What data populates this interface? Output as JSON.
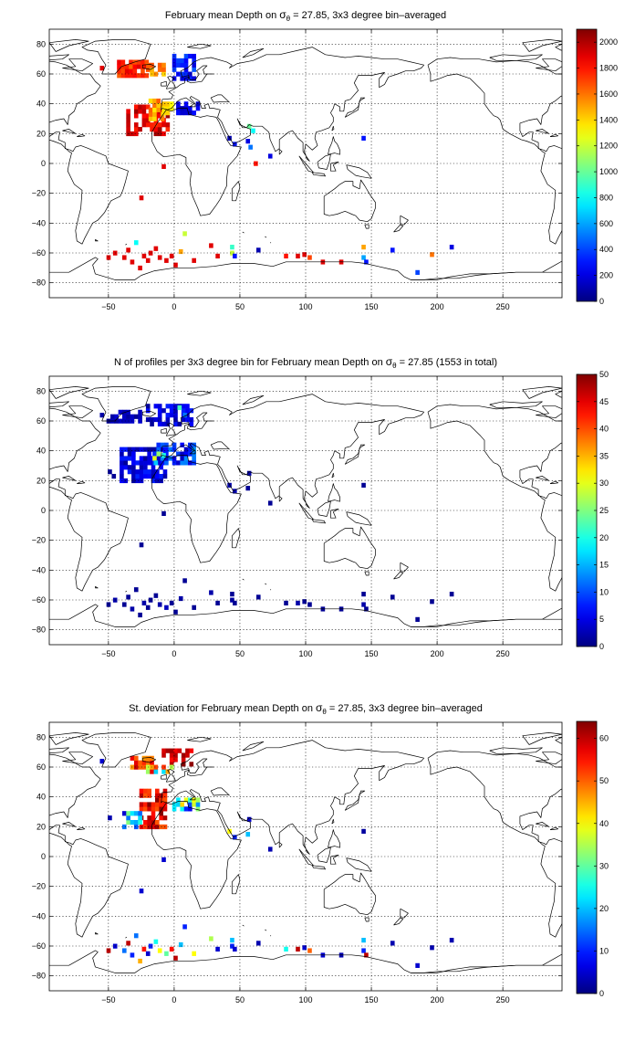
{
  "chart_data": [
    {
      "type": "heatmap",
      "title_prefix": "February mean Depth on ",
      "title_symbol": "σ",
      "title_subscript": "θ",
      "title_suffix": " = 27.85, 3x3 degree bin–averaged",
      "xlabel": "",
      "ylabel": "",
      "xlim": [
        -95,
        295
      ],
      "ylim": [
        -90,
        90
      ],
      "xticks": [
        -50,
        0,
        50,
        100,
        150,
        200,
        250
      ],
      "yticks": [
        -80,
        -60,
        -40,
        -20,
        0,
        20,
        40,
        60,
        80
      ],
      "grid": true,
      "colorbar": {
        "min": 0,
        "max": 2100,
        "ticks": [
          0,
          200,
          400,
          600,
          800,
          1000,
          1200,
          1400,
          1600,
          1800,
          2000
        ],
        "colormap": "jet"
      },
      "bin_size_deg": 3,
      "clusters": [
        {
          "lon": [
            0,
            15
          ],
          "lat": [
            57,
            72
          ],
          "v": [
            150,
            450
          ]
        },
        {
          "lon": [
            -42,
            -20
          ],
          "lat": [
            59,
            68
          ],
          "v": [
            1600,
            1900
          ]
        },
        {
          "lon": [
            -20,
            -8
          ],
          "lat": [
            60,
            67
          ],
          "v": [
            1300,
            1700
          ]
        },
        {
          "lon": [
            -35,
            -5
          ],
          "lat": [
            20,
            38
          ],
          "v": [
            1750,
            2050
          ]
        },
        {
          "lon": [
            -18,
            -8
          ],
          "lat": [
            30,
            44
          ],
          "v": [
            1350,
            1650
          ]
        },
        {
          "lon": [
            -8,
            0
          ],
          "lat": [
            34,
            42
          ],
          "v": [
            1300,
            1500
          ]
        },
        {
          "lon": [
            3,
            18
          ],
          "lat": [
            34,
            40
          ],
          "v": [
            100,
            300
          ]
        }
      ],
      "cells": [
        [
          -55,
          64,
          1900
        ],
        [
          -25,
          -23,
          1900
        ],
        [
          -8,
          -2,
          1900
        ],
        [
          42,
          17,
          100
        ],
        [
          46,
          13,
          300
        ],
        [
          57,
          25,
          1000
        ],
        [
          60,
          22,
          800
        ],
        [
          56,
          15,
          200
        ],
        [
          58,
          11,
          500
        ],
        [
          73,
          5,
          200
        ],
        [
          62,
          0,
          1800
        ],
        [
          144,
          17,
          300
        ],
        [
          -29,
          -53,
          800
        ],
        [
          -23,
          -62,
          1900
        ],
        [
          -18,
          -60,
          1900
        ],
        [
          -14,
          -57,
          1900
        ],
        [
          -11,
          -63,
          1900
        ],
        [
          -6,
          -65,
          1900
        ],
        [
          -2,
          -62,
          1900
        ],
        [
          1,
          -68,
          1900
        ],
        [
          5,
          -59,
          1500
        ],
        [
          8,
          -47,
          1200
        ],
        [
          15,
          -65,
          1900
        ],
        [
          28,
          -55,
          1900
        ],
        [
          33,
          -62,
          1900
        ],
        [
          -50,
          -63,
          1900
        ],
        [
          -45,
          -60,
          1900
        ],
        [
          -38,
          -63,
          1900
        ],
        [
          -35,
          -58,
          1900
        ],
        [
          -32,
          -66,
          1900
        ],
        [
          -26,
          -70,
          1900
        ],
        [
          -20,
          -65,
          1900
        ],
        [
          44,
          -56,
          900
        ],
        [
          44,
          -60,
          1200
        ],
        [
          46,
          -62,
          300
        ],
        [
          64,
          -58,
          100
        ],
        [
          85,
          -62,
          1800
        ],
        [
          94,
          -62,
          1900
        ],
        [
          99,
          -61,
          1900
        ],
        [
          103,
          -63,
          1700
        ],
        [
          113,
          -66,
          1900
        ],
        [
          127,
          -66,
          1900
        ],
        [
          144,
          -56,
          1500
        ],
        [
          144,
          -63,
          600
        ],
        [
          146,
          -66,
          300
        ],
        [
          166,
          -58,
          300
        ],
        [
          185,
          -73,
          400
        ],
        [
          196,
          -61,
          1600
        ],
        [
          211,
          -56,
          200
        ]
      ]
    },
    {
      "type": "heatmap",
      "title_prefix": "N of profiles per 3x3 degree bin for February mean Depth on ",
      "title_symbol": "σ",
      "title_subscript": "θ",
      "title_suffix": " = 27.85 (1553 in total)",
      "xlabel": "",
      "ylabel": "",
      "xlim": [
        -95,
        295
      ],
      "ylim": [
        -90,
        90
      ],
      "xticks": [
        -50,
        0,
        50,
        100,
        150,
        200,
        250
      ],
      "yticks": [
        -80,
        -60,
        -40,
        -20,
        0,
        20,
        40,
        60,
        80
      ],
      "grid": true,
      "colorbar": {
        "min": 0,
        "max": 50,
        "ticks": [
          0,
          5,
          10,
          15,
          20,
          25,
          30,
          35,
          40,
          45,
          50
        ],
        "colormap": "jet"
      },
      "bin_size_deg": 3,
      "clusters": [
        {
          "lon": [
            -20,
            15
          ],
          "lat": [
            58,
            72
          ],
          "v": [
            1,
            8
          ]
        },
        {
          "lon": [
            -40,
            -5
          ],
          "lat": [
            20,
            42
          ],
          "v": [
            1,
            8
          ]
        },
        {
          "lon": [
            -15,
            15
          ],
          "lat": [
            32,
            44
          ],
          "v": [
            3,
            14
          ]
        },
        {
          "lon": [
            -50,
            -25
          ],
          "lat": [
            60,
            66
          ],
          "v": [
            1,
            4
          ]
        }
      ],
      "cells": [
        [
          -15,
          35,
          30
        ],
        [
          -12,
          38,
          26
        ],
        [
          -8,
          37,
          20
        ],
        [
          -14,
          32,
          16
        ],
        [
          4,
          69,
          22
        ],
        [
          8,
          64,
          12
        ],
        [
          -55,
          64,
          2
        ],
        [
          -49,
          26,
          1
        ],
        [
          -46,
          23,
          1
        ],
        [
          42,
          17,
          2
        ],
        [
          46,
          13,
          3
        ],
        [
          57,
          25,
          2
        ],
        [
          56,
          15,
          1
        ],
        [
          73,
          5,
          1
        ],
        [
          144,
          17,
          1
        ],
        [
          -25,
          -23,
          1
        ],
        [
          -8,
          -2,
          1
        ],
        [
          -29,
          -53,
          1
        ],
        [
          -23,
          -62,
          2
        ],
        [
          -18,
          -60,
          1
        ],
        [
          -14,
          -57,
          1
        ],
        [
          -11,
          -63,
          2
        ],
        [
          -6,
          -65,
          3
        ],
        [
          -2,
          -62,
          1
        ],
        [
          1,
          -68,
          1
        ],
        [
          5,
          -59,
          2
        ],
        [
          8,
          -47,
          1
        ],
        [
          15,
          -65,
          1
        ],
        [
          28,
          -55,
          2
        ],
        [
          33,
          -62,
          1
        ],
        [
          -50,
          -63,
          1
        ],
        [
          -45,
          -60,
          2
        ],
        [
          -38,
          -63,
          1
        ],
        [
          -35,
          -58,
          1
        ],
        [
          -32,
          -66,
          2
        ],
        [
          -26,
          -70,
          1
        ],
        [
          -20,
          -65,
          1
        ],
        [
          44,
          -56,
          1
        ],
        [
          44,
          -60,
          2
        ],
        [
          46,
          -62,
          1
        ],
        [
          64,
          -58,
          1
        ],
        [
          85,
          -62,
          1
        ],
        [
          94,
          -62,
          2
        ],
        [
          99,
          -61,
          1
        ],
        [
          103,
          -63,
          1
        ],
        [
          113,
          -66,
          1
        ],
        [
          127,
          -66,
          1
        ],
        [
          144,
          -56,
          1
        ],
        [
          144,
          -63,
          2
        ],
        [
          146,
          -66,
          1
        ],
        [
          166,
          -58,
          1
        ],
        [
          185,
          -73,
          1
        ],
        [
          196,
          -61,
          1
        ],
        [
          211,
          -56,
          1
        ]
      ]
    },
    {
      "type": "heatmap",
      "title_prefix": "St. deviation for February mean Depth on ",
      "title_symbol": "σ",
      "title_subscript": "θ",
      "title_suffix": " = 27.85, 3x3 degree bin–averaged",
      "xlabel": "",
      "ylabel": "",
      "xlim": [
        -95,
        295
      ],
      "ylim": [
        -90,
        90
      ],
      "xticks": [
        -50,
        0,
        50,
        100,
        150,
        200,
        250
      ],
      "yticks": [
        -80,
        -60,
        -40,
        -20,
        0,
        20,
        40,
        60,
        80
      ],
      "grid": true,
      "colorbar": {
        "min": 0,
        "max": 64,
        "ticks": [
          0,
          10,
          20,
          30,
          40,
          50,
          60
        ],
        "colormap": "jet"
      },
      "bin_size_deg": 3,
      "clusters": [
        {
          "lon": [
            -8,
            15
          ],
          "lat": [
            62,
            73
          ],
          "v": [
            55,
            64
          ]
        },
        {
          "lon": [
            -35,
            -15
          ],
          "lat": [
            60,
            68
          ],
          "v": [
            45,
            64
          ]
        },
        {
          "lon": [
            -25,
            -5
          ],
          "lat": [
            20,
            44
          ],
          "v": [
            50,
            64
          ]
        },
        {
          "lon": [
            -38,
            -25
          ],
          "lat": [
            20,
            30
          ],
          "v": [
            5,
            35
          ]
        },
        {
          "lon": [
            0,
            18
          ],
          "lat": [
            32,
            40
          ],
          "v": [
            5,
            45
          ]
        },
        {
          "lon": [
            -20,
            0
          ],
          "lat": [
            57,
            62
          ],
          "v": [
            20,
            60
          ]
        }
      ],
      "cells": [
        [
          -55,
          64,
          5
        ],
        [
          -49,
          26,
          3
        ],
        [
          42,
          17,
          40
        ],
        [
          46,
          13,
          10
        ],
        [
          57,
          25,
          5
        ],
        [
          56,
          15,
          20
        ],
        [
          73,
          5,
          3
        ],
        [
          144,
          17,
          2
        ],
        [
          -25,
          -23,
          5
        ],
        [
          -8,
          -2,
          5
        ],
        [
          -29,
          -53,
          15
        ],
        [
          -23,
          -62,
          55
        ],
        [
          -18,
          -60,
          10
        ],
        [
          -14,
          -57,
          25
        ],
        [
          -11,
          -63,
          40
        ],
        [
          -6,
          -65,
          30
        ],
        [
          -2,
          -62,
          55
        ],
        [
          1,
          -68,
          60
        ],
        [
          5,
          -59,
          20
        ],
        [
          8,
          -47,
          10
        ],
        [
          15,
          -65,
          40
        ],
        [
          28,
          -55,
          35
        ],
        [
          33,
          -62,
          5
        ],
        [
          -50,
          -63,
          60
        ],
        [
          -45,
          -60,
          5
        ],
        [
          -38,
          -63,
          15
        ],
        [
          -35,
          -58,
          60
        ],
        [
          -32,
          -66,
          10
        ],
        [
          -26,
          -70,
          45
        ],
        [
          -20,
          -65,
          5
        ],
        [
          44,
          -56,
          20
        ],
        [
          44,
          -60,
          10
        ],
        [
          46,
          -62,
          5
        ],
        [
          64,
          -58,
          3
        ],
        [
          85,
          -62,
          25
        ],
        [
          94,
          -62,
          60
        ],
        [
          99,
          -61,
          5
        ],
        [
          103,
          -63,
          50
        ],
        [
          113,
          -66,
          5
        ],
        [
          127,
          -66,
          3
        ],
        [
          144,
          -56,
          20
        ],
        [
          144,
          -63,
          10
        ],
        [
          146,
          -66,
          60
        ],
        [
          166,
          -58,
          3
        ],
        [
          185,
          -73,
          5
        ],
        [
          196,
          -61,
          3
        ],
        [
          211,
          -56,
          3
        ]
      ]
    }
  ]
}
